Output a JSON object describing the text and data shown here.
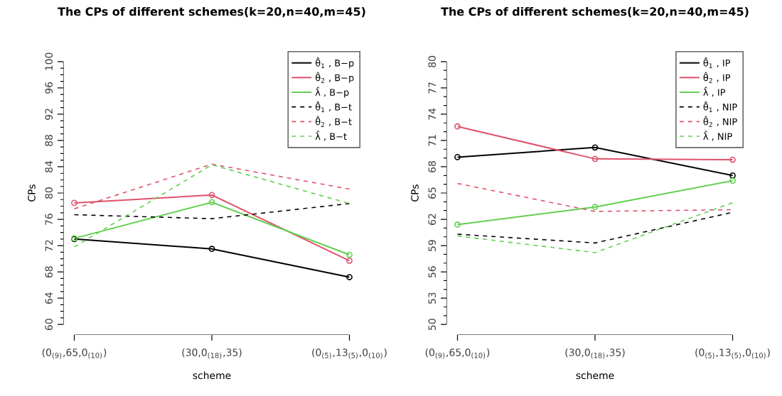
{
  "chart_data": [
    {
      "type": "line",
      "title": "The CPs of different schemes(k=20,n=40,m=45)",
      "xlabel": "scheme",
      "ylabel": "CPs",
      "categories": [
        "(0$_{(9)}$,65,0$_{(10)}$)",
        "(30,0$_{(18)}$,35)",
        "(0$_{(5)}$,13$_{(5)}$,0$_{(10)}$)"
      ],
      "ylim": [
        60,
        100
      ],
      "yticks": [
        60,
        64,
        68,
        72,
        76,
        80,
        84,
        88,
        92,
        96,
        100
      ],
      "legend": "top right",
      "series": [
        {
          "name": "θ̂$_{1}$ , B−p",
          "color": "#000000",
          "line_style": "solid",
          "marker": "circle",
          "values": [
            73.0,
            71.5,
            67.2
          ]
        },
        {
          "name": "θ̂$_{2}$ , B−p",
          "color": "#df536b",
          "line_style": "solid",
          "marker": "circle",
          "values": [
            78.5,
            79.7,
            69.7
          ]
        },
        {
          "name": "λ̂ , B−p",
          "color": "#61d04f",
          "line_style": "solid",
          "marker": "circle",
          "values": [
            73.1,
            78.6,
            70.6
          ]
        },
        {
          "name": "θ̂$_{1}$ , B−t",
          "color": "#000000",
          "line_style": "dashed",
          "marker": "none",
          "values": [
            76.7,
            76.1,
            78.4
          ]
        },
        {
          "name": "θ̂$_{2}$ , B−t",
          "color": "#df536b",
          "line_style": "dashed",
          "marker": "none",
          "values": [
            77.6,
            84.4,
            80.6
          ]
        },
        {
          "name": "λ̂ , B−t",
          "color": "#61d04f",
          "line_style": "dashed",
          "marker": "none",
          "values": [
            71.8,
            84.3,
            78.4
          ]
        }
      ]
    },
    {
      "type": "line",
      "title": "The CPs of different schemes(k=20,n=40,m=45)",
      "xlabel": "scheme",
      "ylabel": "CPs",
      "categories": [
        "(0$_{(9)}$,65,0$_{(10)}$)",
        "(30,0$_{(18)}$,35)",
        "(0$_{(5)}$,13$_{(5)}$,0$_{(10)}$)"
      ],
      "ylim": [
        50,
        80
      ],
      "yticks": [
        50,
        53,
        56,
        59,
        62,
        65,
        68,
        71,
        74,
        77,
        80
      ],
      "legend": "top right",
      "series": [
        {
          "name": "θ̂$_{1}$ , IP",
          "color": "#000000",
          "line_style": "solid",
          "marker": "circle",
          "values": [
            69.1,
            70.2,
            67.0
          ]
        },
        {
          "name": "θ̂$_{2}$ , IP",
          "color": "#df536b",
          "line_style": "solid",
          "marker": "circle",
          "values": [
            72.6,
            68.9,
            68.8
          ]
        },
        {
          "name": "λ̂ , IP",
          "color": "#61d04f",
          "line_style": "solid",
          "marker": "circle",
          "values": [
            61.4,
            63.4,
            66.4
          ]
        },
        {
          "name": "θ̂$_{1}$ , NIP",
          "color": "#000000",
          "line_style": "dashed",
          "marker": "none",
          "values": [
            60.3,
            59.3,
            62.8
          ]
        },
        {
          "name": "θ̂$_{2}$ , NIP",
          "color": "#df536b",
          "line_style": "dashed",
          "marker": "none",
          "values": [
            66.1,
            62.9,
            63.1
          ]
        },
        {
          "name": "λ̂ , NIP",
          "color": "#61d04f",
          "line_style": "dashed",
          "marker": "none",
          "values": [
            60.1,
            58.2,
            63.9
          ]
        }
      ]
    }
  ]
}
